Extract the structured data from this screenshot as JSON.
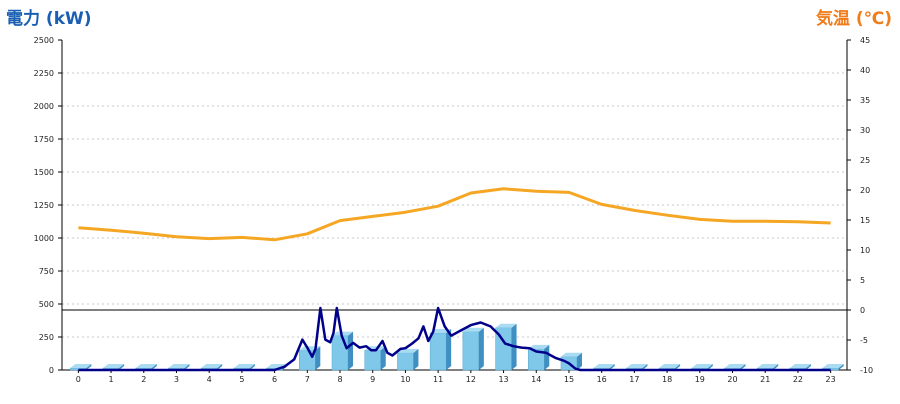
{
  "chart_data": {
    "type": "bar+line",
    "title": "",
    "left_axis": {
      "label": "電力 (kW)",
      "range": [
        0,
        2500
      ],
      "ticks": [
        "0",
        "250",
        "500",
        "750",
        "1000",
        "1250",
        "1500",
        "1750",
        "2000",
        "2250",
        "2500"
      ],
      "color": "#1a5fb4"
    },
    "right_axis": {
      "label": "気温 (℃)",
      "range": [
        -10,
        45
      ],
      "ticks": [
        "-10",
        "-5",
        "0",
        "5",
        "10",
        "15",
        "20",
        "25",
        "30",
        "35",
        "40",
        "45"
      ],
      "color": "#f07c1a"
    },
    "x": {
      "categories": [
        "0",
        "1",
        "2",
        "3",
        "4",
        "5",
        "6",
        "7",
        "8",
        "9",
        "10",
        "11",
        "12",
        "13",
        "14",
        "15",
        "16",
        "17",
        "18",
        "19",
        "20",
        "21",
        "22",
        "23"
      ]
    },
    "grid": true,
    "reference_line": {
      "axis": "right",
      "value": 0
    },
    "series": [
      {
        "kind": "bar",
        "axis": "left",
        "color": "#7fc8ea",
        "values": [
          15,
          15,
          15,
          15,
          15,
          15,
          15,
          150,
          260,
          150,
          130,
          280,
          290,
          320,
          160,
          100,
          15,
          15,
          15,
          15,
          15,
          15,
          15,
          15
        ]
      },
      {
        "kind": "line",
        "axis": "left",
        "color": "#00008b",
        "points": [
          [
            0,
            0
          ],
          [
            1,
            0
          ],
          [
            2,
            0
          ],
          [
            3,
            0
          ],
          [
            4,
            0
          ],
          [
            5,
            0
          ],
          [
            6,
            0
          ],
          [
            6.3,
            25
          ],
          [
            6.6,
            80
          ],
          [
            6.85,
            230
          ],
          [
            7.0,
            170
          ],
          [
            7.15,
            100
          ],
          [
            7.25,
            160
          ],
          [
            7.4,
            470
          ],
          [
            7.55,
            230
          ],
          [
            7.7,
            210
          ],
          [
            7.8,
            280
          ],
          [
            7.9,
            470
          ],
          [
            8.05,
            260
          ],
          [
            8.2,
            165
          ],
          [
            8.4,
            205
          ],
          [
            8.6,
            170
          ],
          [
            8.8,
            180
          ],
          [
            8.95,
            150
          ],
          [
            9.1,
            150
          ],
          [
            9.3,
            220
          ],
          [
            9.45,
            130
          ],
          [
            9.6,
            110
          ],
          [
            9.85,
            160
          ],
          [
            10.0,
            165
          ],
          [
            10.2,
            200
          ],
          [
            10.4,
            240
          ],
          [
            10.55,
            330
          ],
          [
            10.7,
            220
          ],
          [
            10.85,
            290
          ],
          [
            11.0,
            470
          ],
          [
            11.2,
            330
          ],
          [
            11.4,
            260
          ],
          [
            11.7,
            300
          ],
          [
            12.0,
            340
          ],
          [
            12.3,
            360
          ],
          [
            12.6,
            330
          ],
          [
            12.85,
            270
          ],
          [
            13.05,
            200
          ],
          [
            13.3,
            180
          ],
          [
            13.55,
            170
          ],
          [
            13.8,
            165
          ],
          [
            14.0,
            140
          ],
          [
            14.3,
            130
          ],
          [
            14.6,
            90
          ],
          [
            14.85,
            70
          ],
          [
            15.0,
            50
          ],
          [
            15.2,
            10
          ],
          [
            15.35,
            0
          ],
          [
            16,
            0
          ],
          [
            17,
            0
          ],
          [
            18,
            0
          ],
          [
            19,
            0
          ],
          [
            20,
            0
          ],
          [
            21,
            0
          ],
          [
            22,
            0
          ],
          [
            23,
            0
          ]
        ]
      },
      {
        "kind": "line",
        "axis": "right",
        "color": "#f5a623",
        "values": [
          13.7,
          13.3,
          12.8,
          12.2,
          11.9,
          12.1,
          11.7,
          12.7,
          14.9,
          15.6,
          16.3,
          17.3,
          19.5,
          20.2,
          19.8,
          19.6,
          17.6,
          16.6,
          15.8,
          15.1,
          14.8,
          14.8,
          14.7,
          14.5
        ]
      }
    ]
  }
}
